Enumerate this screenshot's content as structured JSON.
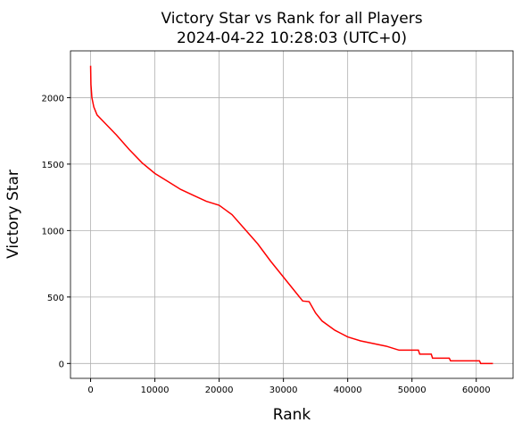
{
  "chart_data": {
    "type": "line",
    "title": "Victory Star vs Rank for all Players",
    "subtitle": "2024-04-22 10:28:03 (UTC+0)",
    "x_label": "Rank",
    "y_label": "Victory Star",
    "x": [
      0,
      50,
      200,
      500,
      1000,
      2000,
      4000,
      6000,
      8000,
      10000,
      12000,
      14000,
      16000,
      18000,
      20000,
      22000,
      24000,
      26000,
      28000,
      30000,
      32000,
      33000,
      34000,
      35000,
      36000,
      38000,
      40000,
      42000,
      44000,
      46000,
      48000,
      51000,
      51200,
      53000,
      53200,
      55800,
      56000,
      60500,
      60700,
      62600
    ],
    "series": [
      {
        "name": "Victory Star",
        "color": "#ff0000",
        "values": [
          2240,
          2100,
          2000,
          1930,
          1870,
          1820,
          1720,
          1610,
          1510,
          1430,
          1370,
          1310,
          1265,
          1220,
          1190,
          1120,
          1010,
          900,
          770,
          650,
          530,
          470,
          465,
          380,
          320,
          250,
          200,
          170,
          150,
          130,
          100,
          100,
          70,
          70,
          40,
          40,
          20,
          20,
          0,
          0
        ]
      }
    ],
    "xlim": [
      -3130,
      65730
    ],
    "ylim": [
      -112,
      2352
    ],
    "xticks": [
      0,
      10000,
      20000,
      30000,
      40000,
      50000,
      60000
    ],
    "yticks": [
      0,
      500,
      1000,
      1500,
      2000
    ],
    "grid": true
  }
}
